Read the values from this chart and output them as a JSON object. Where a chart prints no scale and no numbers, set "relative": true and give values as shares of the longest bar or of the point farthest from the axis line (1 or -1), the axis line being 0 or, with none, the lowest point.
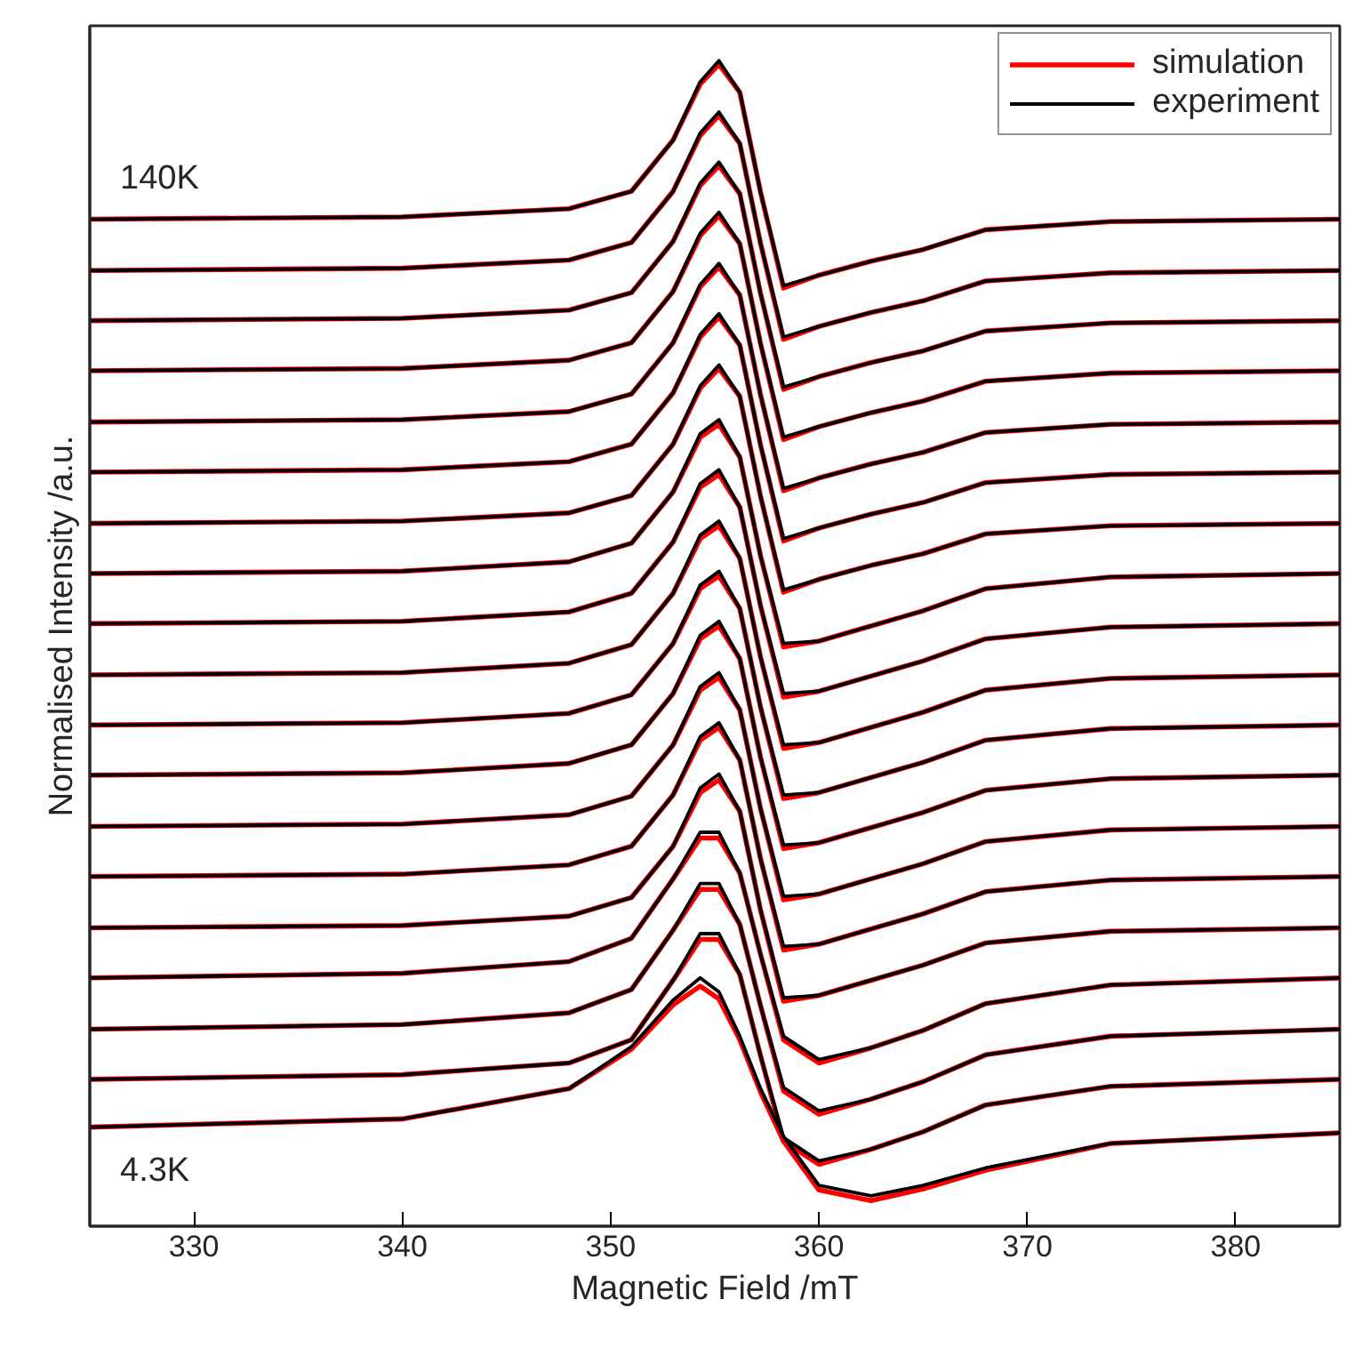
{
  "chart_data": {
    "type": "line",
    "xlabel": "Magnetic Field /mT",
    "ylabel": "Normalised Intensity /a.u.",
    "relative": true,
    "x": [
      325,
      340,
      348,
      351,
      353,
      354.3,
      355.2,
      356.2,
      357.2,
      358.3,
      360,
      362.5,
      365,
      368,
      374,
      385
    ],
    "xlim": [
      325,
      385
    ],
    "xticks": [
      330,
      340,
      350,
      360,
      370,
      380
    ],
    "grid": false,
    "legend": "top right",
    "marker": "none",
    "line_style": "solid",
    "annotations": [
      "140K",
      "4.3K"
    ],
    "series": [
      {
        "name": "simulation",
        "color": "#ff0000",
        "values": [
          0.864,
          0.866,
          0.873,
          0.888,
          0.932,
          0.98,
          0.997,
          0.973,
          0.887,
          0.805,
          0.816,
          0.828,
          0.838,
          0.855,
          0.862,
          0.864
        ]
      },
      {
        "name": "experiment",
        "color": "#000000",
        "values": [
          0.864,
          0.866,
          0.873,
          0.888,
          0.932,
          0.982,
          1.0,
          0.973,
          0.887,
          0.807,
          0.816,
          0.828,
          0.838,
          0.855,
          0.862,
          0.864
        ]
      },
      {
        "color": "#ff0000",
        "values": [
          0.82,
          0.822,
          0.829,
          0.844,
          0.888,
          0.936,
          0.953,
          0.929,
          0.843,
          0.761,
          0.772,
          0.784,
          0.794,
          0.811,
          0.818,
          0.82
        ]
      },
      {
        "color": "#000000",
        "values": [
          0.82,
          0.822,
          0.829,
          0.844,
          0.888,
          0.938,
          0.956,
          0.929,
          0.843,
          0.763,
          0.772,
          0.784,
          0.794,
          0.811,
          0.818,
          0.82
        ]
      },
      {
        "color": "#ff0000",
        "values": [
          0.777,
          0.779,
          0.786,
          0.801,
          0.845,
          0.893,
          0.91,
          0.886,
          0.8,
          0.718,
          0.729,
          0.741,
          0.751,
          0.768,
          0.775,
          0.777
        ]
      },
      {
        "color": "#000000",
        "values": [
          0.777,
          0.779,
          0.786,
          0.801,
          0.845,
          0.895,
          0.913,
          0.886,
          0.8,
          0.72,
          0.729,
          0.741,
          0.751,
          0.768,
          0.775,
          0.777
        ]
      },
      {
        "color": "#ff0000",
        "values": [
          0.734,
          0.736,
          0.743,
          0.758,
          0.802,
          0.85,
          0.867,
          0.843,
          0.757,
          0.675,
          0.686,
          0.698,
          0.708,
          0.725,
          0.732,
          0.734
        ]
      },
      {
        "color": "#000000",
        "values": [
          0.734,
          0.736,
          0.743,
          0.758,
          0.802,
          0.852,
          0.87,
          0.843,
          0.757,
          0.677,
          0.686,
          0.698,
          0.708,
          0.725,
          0.732,
          0.734
        ]
      },
      {
        "color": "#ff0000",
        "values": [
          0.69,
          0.692,
          0.699,
          0.714,
          0.758,
          0.806,
          0.823,
          0.799,
          0.713,
          0.631,
          0.642,
          0.654,
          0.664,
          0.681,
          0.688,
          0.69
        ]
      },
      {
        "color": "#000000",
        "values": [
          0.69,
          0.692,
          0.699,
          0.714,
          0.758,
          0.808,
          0.826,
          0.799,
          0.713,
          0.633,
          0.642,
          0.654,
          0.664,
          0.681,
          0.688,
          0.69
        ]
      },
      {
        "color": "#ff0000",
        "values": [
          0.647,
          0.649,
          0.656,
          0.671,
          0.715,
          0.763,
          0.78,
          0.756,
          0.67,
          0.588,
          0.599,
          0.611,
          0.621,
          0.638,
          0.645,
          0.647
        ]
      },
      {
        "color": "#000000",
        "values": [
          0.647,
          0.649,
          0.656,
          0.671,
          0.715,
          0.765,
          0.783,
          0.756,
          0.67,
          0.59,
          0.599,
          0.611,
          0.621,
          0.638,
          0.645,
          0.647
        ]
      },
      {
        "color": "#ff0000",
        "values": [
          0.603,
          0.605,
          0.612,
          0.627,
          0.671,
          0.719,
          0.736,
          0.712,
          0.626,
          0.544,
          0.555,
          0.567,
          0.577,
          0.594,
          0.601,
          0.603
        ]
      },
      {
        "color": "#000000",
        "values": [
          0.603,
          0.605,
          0.612,
          0.627,
          0.671,
          0.721,
          0.739,
          0.712,
          0.626,
          0.546,
          0.555,
          0.567,
          0.577,
          0.594,
          0.601,
          0.603
        ]
      },
      {
        "color": "#ff0000",
        "values": [
          0.56,
          0.562,
          0.57,
          0.586,
          0.63,
          0.677,
          0.688,
          0.66,
          0.575,
          0.497,
          0.502,
          0.515,
          0.528,
          0.547,
          0.557,
          0.56
        ]
      },
      {
        "color": "#000000",
        "values": [
          0.56,
          0.562,
          0.57,
          0.586,
          0.63,
          0.68,
          0.692,
          0.66,
          0.575,
          0.5,
          0.502,
          0.515,
          0.528,
          0.547,
          0.557,
          0.56
        ]
      },
      {
        "color": "#ff0000",
        "values": [
          0.517,
          0.519,
          0.527,
          0.543,
          0.587,
          0.634,
          0.645,
          0.617,
          0.532,
          0.454,
          0.459,
          0.472,
          0.485,
          0.504,
          0.514,
          0.517
        ]
      },
      {
        "color": "#000000",
        "values": [
          0.517,
          0.519,
          0.527,
          0.543,
          0.587,
          0.637,
          0.649,
          0.617,
          0.532,
          0.457,
          0.459,
          0.472,
          0.485,
          0.504,
          0.514,
          0.517
        ]
      },
      {
        "color": "#ff0000",
        "values": [
          0.473,
          0.475,
          0.483,
          0.499,
          0.543,
          0.59,
          0.601,
          0.573,
          0.488,
          0.41,
          0.415,
          0.428,
          0.441,
          0.46,
          0.47,
          0.473
        ]
      },
      {
        "color": "#000000",
        "values": [
          0.473,
          0.475,
          0.483,
          0.499,
          0.543,
          0.593,
          0.605,
          0.573,
          0.488,
          0.413,
          0.415,
          0.428,
          0.441,
          0.46,
          0.47,
          0.473
        ]
      },
      {
        "color": "#ff0000",
        "values": [
          0.43,
          0.432,
          0.44,
          0.456,
          0.5,
          0.547,
          0.558,
          0.53,
          0.445,
          0.367,
          0.372,
          0.385,
          0.398,
          0.417,
          0.427,
          0.43
        ]
      },
      {
        "color": "#000000",
        "values": [
          0.43,
          0.432,
          0.44,
          0.456,
          0.5,
          0.55,
          0.562,
          0.53,
          0.445,
          0.37,
          0.372,
          0.385,
          0.398,
          0.417,
          0.427,
          0.43
        ]
      },
      {
        "color": "#ff0000",
        "values": [
          0.387,
          0.389,
          0.397,
          0.413,
          0.457,
          0.504,
          0.515,
          0.487,
          0.402,
          0.324,
          0.329,
          0.342,
          0.355,
          0.374,
          0.384,
          0.387
        ]
      },
      {
        "color": "#000000",
        "values": [
          0.387,
          0.389,
          0.397,
          0.413,
          0.457,
          0.507,
          0.519,
          0.487,
          0.402,
          0.327,
          0.329,
          0.342,
          0.355,
          0.374,
          0.384,
          0.387
        ]
      },
      {
        "color": "#ff0000",
        "values": [
          0.343,
          0.345,
          0.353,
          0.369,
          0.413,
          0.46,
          0.471,
          0.443,
          0.358,
          0.28,
          0.285,
          0.298,
          0.311,
          0.33,
          0.34,
          0.343
        ]
      },
      {
        "color": "#000000",
        "values": [
          0.343,
          0.345,
          0.353,
          0.369,
          0.413,
          0.463,
          0.475,
          0.443,
          0.358,
          0.283,
          0.285,
          0.298,
          0.311,
          0.33,
          0.34,
          0.343
        ]
      },
      {
        "color": "#ff0000",
        "values": [
          0.3,
          0.302,
          0.31,
          0.326,
          0.37,
          0.417,
          0.428,
          0.4,
          0.315,
          0.237,
          0.242,
          0.255,
          0.268,
          0.287,
          0.297,
          0.3
        ]
      },
      {
        "color": "#000000",
        "values": [
          0.3,
          0.302,
          0.31,
          0.326,
          0.37,
          0.42,
          0.432,
          0.4,
          0.315,
          0.24,
          0.242,
          0.255,
          0.268,
          0.287,
          0.297,
          0.3
        ]
      },
      {
        "color": "#ff0000",
        "values": [
          0.256,
          0.258,
          0.266,
          0.282,
          0.326,
          0.372,
          0.383,
          0.356,
          0.271,
          0.193,
          0.198,
          0.211,
          0.224,
          0.243,
          0.253,
          0.256
        ]
      },
      {
        "color": "#000000",
        "values": [
          0.256,
          0.258,
          0.266,
          0.282,
          0.326,
          0.376,
          0.388,
          0.356,
          0.271,
          0.196,
          0.198,
          0.211,
          0.224,
          0.243,
          0.253,
          0.256
        ]
      },
      {
        "color": "#ff0000",
        "values": [
          0.213,
          0.217,
          0.227,
          0.247,
          0.298,
          0.333,
          0.333,
          0.303,
          0.233,
          0.16,
          0.14,
          0.153,
          0.168,
          0.191,
          0.207,
          0.213
        ]
      },
      {
        "color": "#000000",
        "values": [
          0.213,
          0.217,
          0.227,
          0.247,
          0.298,
          0.338,
          0.338,
          0.303,
          0.233,
          0.163,
          0.143,
          0.153,
          0.168,
          0.191,
          0.207,
          0.213
        ]
      },
      {
        "color": "#ff0000",
        "values": [
          0.169,
          0.173,
          0.183,
          0.203,
          0.254,
          0.289,
          0.289,
          0.259,
          0.189,
          0.116,
          0.096,
          0.109,
          0.124,
          0.147,
          0.163,
          0.169
        ]
      },
      {
        "color": "#000000",
        "values": [
          0.169,
          0.173,
          0.183,
          0.203,
          0.254,
          0.294,
          0.294,
          0.259,
          0.189,
          0.119,
          0.099,
          0.109,
          0.124,
          0.147,
          0.163,
          0.169
        ]
      },
      {
        "color": "#ff0000",
        "values": [
          0.126,
          0.13,
          0.14,
          0.16,
          0.211,
          0.246,
          0.246,
          0.216,
          0.146,
          0.073,
          0.053,
          0.066,
          0.081,
          0.104,
          0.12,
          0.126
        ]
      },
      {
        "color": "#000000",
        "values": [
          0.126,
          0.13,
          0.14,
          0.16,
          0.211,
          0.251,
          0.251,
          0.216,
          0.146,
          0.076,
          0.056,
          0.066,
          0.081,
          0.104,
          0.12,
          0.126
        ]
      },
      {
        "color": "#ff0000",
        "values": [
          0.085,
          0.092,
          0.118,
          0.152,
          0.19,
          0.206,
          0.195,
          0.16,
          0.115,
          0.073,
          0.031,
          0.022,
          0.032,
          0.048,
          0.071,
          0.08
        ]
      },
      {
        "color": "#000000",
        "values": [
          0.085,
          0.092,
          0.118,
          0.154,
          0.194,
          0.213,
          0.201,
          0.163,
          0.118,
          0.077,
          0.035,
          0.026,
          0.035,
          0.05,
          0.071,
          0.08
        ]
      }
    ]
  }
}
